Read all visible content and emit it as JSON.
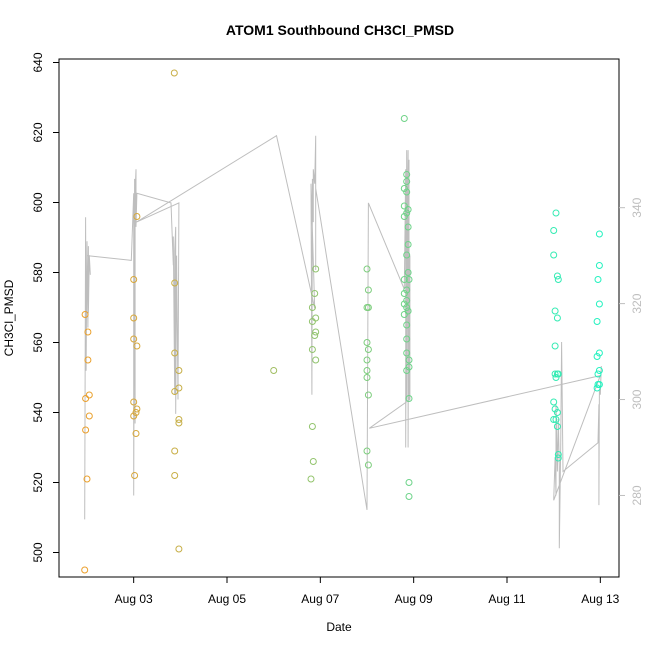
{
  "chart_data": {
    "type": "scatter",
    "title": "ATOM1 Southbound CH3Cl_PMSD",
    "xlabel": "Date",
    "ylabel": "CH3Cl_PMSD",
    "x_unit": "day of August",
    "xlim": [
      1.4,
      13.4
    ],
    "ylim": [
      493,
      641
    ],
    "y2lim": [
      263,
      371
    ],
    "x_ticks": [
      3,
      5,
      7,
      9,
      11,
      13
    ],
    "x_tick_labels": [
      "Aug 03",
      "Aug 05",
      "Aug 07",
      "Aug 09",
      "Aug 11",
      "Aug 13"
    ],
    "y_ticks": [
      500,
      520,
      540,
      560,
      580,
      600,
      620,
      640
    ],
    "y2_ticks": [
      280,
      300,
      320,
      340
    ],
    "grid": false,
    "legend": "none",
    "colors": {
      "points_start": "#f59b24",
      "points_end": "#1bf5c5",
      "secondary_line": "#bebebe",
      "axes": "#000000"
    },
    "points": [
      {
        "x": 1.95,
        "y": 495
      },
      {
        "x": 1.96,
        "y": 568
      },
      {
        "x": 1.97,
        "y": 544
      },
      {
        "x": 1.97,
        "y": 535
      },
      {
        "x": 2.0,
        "y": 521
      },
      {
        "x": 2.02,
        "y": 563
      },
      {
        "x": 2.02,
        "y": 555
      },
      {
        "x": 2.05,
        "y": 545
      },
      {
        "x": 2.05,
        "y": 539
      },
      {
        "x": 3.0,
        "y": 578
      },
      {
        "x": 3.0,
        "y": 567
      },
      {
        "x": 3.0,
        "y": 561
      },
      {
        "x": 3.0,
        "y": 543
      },
      {
        "x": 3.0,
        "y": 539
      },
      {
        "x": 3.02,
        "y": 522
      },
      {
        "x": 3.05,
        "y": 540
      },
      {
        "x": 3.05,
        "y": 534
      },
      {
        "x": 3.07,
        "y": 596
      },
      {
        "x": 3.07,
        "y": 559
      },
      {
        "x": 3.07,
        "y": 541
      },
      {
        "x": 3.87,
        "y": 637
      },
      {
        "x": 3.88,
        "y": 577
      },
      {
        "x": 3.88,
        "y": 557
      },
      {
        "x": 3.88,
        "y": 546
      },
      {
        "x": 3.88,
        "y": 529
      },
      {
        "x": 3.88,
        "y": 522
      },
      {
        "x": 3.97,
        "y": 501
      },
      {
        "x": 3.97,
        "y": 552
      },
      {
        "x": 3.97,
        "y": 547
      },
      {
        "x": 3.97,
        "y": 538
      },
      {
        "x": 3.97,
        "y": 537
      },
      {
        "x": 6.0,
        "y": 552
      },
      {
        "x": 6.8,
        "y": 521
      },
      {
        "x": 6.83,
        "y": 570
      },
      {
        "x": 6.83,
        "y": 566
      },
      {
        "x": 6.83,
        "y": 558
      },
      {
        "x": 6.83,
        "y": 536
      },
      {
        "x": 6.85,
        "y": 526
      },
      {
        "x": 6.88,
        "y": 574
      },
      {
        "x": 6.88,
        "y": 562
      },
      {
        "x": 6.9,
        "y": 581
      },
      {
        "x": 6.9,
        "y": 567
      },
      {
        "x": 6.9,
        "y": 563
      },
      {
        "x": 6.9,
        "y": 555
      },
      {
        "x": 8.0,
        "y": 581
      },
      {
        "x": 8.0,
        "y": 570
      },
      {
        "x": 8.0,
        "y": 560
      },
      {
        "x": 8.0,
        "y": 555
      },
      {
        "x": 8.0,
        "y": 552
      },
      {
        "x": 8.0,
        "y": 550
      },
      {
        "x": 8.0,
        "y": 529
      },
      {
        "x": 8.03,
        "y": 575
      },
      {
        "x": 8.03,
        "y": 570
      },
      {
        "x": 8.03,
        "y": 558
      },
      {
        "x": 8.03,
        "y": 545
      },
      {
        "x": 8.03,
        "y": 525
      },
      {
        "x": 8.8,
        "y": 624
      },
      {
        "x": 8.8,
        "y": 604
      },
      {
        "x": 8.8,
        "y": 599
      },
      {
        "x": 8.8,
        "y": 596
      },
      {
        "x": 8.8,
        "y": 578
      },
      {
        "x": 8.8,
        "y": 574
      },
      {
        "x": 8.8,
        "y": 571
      },
      {
        "x": 8.8,
        "y": 568
      },
      {
        "x": 8.85,
        "y": 608
      },
      {
        "x": 8.85,
        "y": 606
      },
      {
        "x": 8.85,
        "y": 603
      },
      {
        "x": 8.85,
        "y": 597
      },
      {
        "x": 8.85,
        "y": 585
      },
      {
        "x": 8.85,
        "y": 575
      },
      {
        "x": 8.85,
        "y": 572
      },
      {
        "x": 8.85,
        "y": 570
      },
      {
        "x": 8.85,
        "y": 565
      },
      {
        "x": 8.85,
        "y": 561
      },
      {
        "x": 8.85,
        "y": 557
      },
      {
        "x": 8.85,
        "y": 552
      },
      {
        "x": 8.88,
        "y": 598
      },
      {
        "x": 8.88,
        "y": 593
      },
      {
        "x": 8.88,
        "y": 588
      },
      {
        "x": 8.88,
        "y": 580
      },
      {
        "x": 8.88,
        "y": 569
      },
      {
        "x": 8.9,
        "y": 578
      },
      {
        "x": 8.9,
        "y": 555
      },
      {
        "x": 8.9,
        "y": 553
      },
      {
        "x": 8.9,
        "y": 544
      },
      {
        "x": 8.9,
        "y": 520
      },
      {
        "x": 8.9,
        "y": 516
      },
      {
        "x": 12.0,
        "y": 592
      },
      {
        "x": 12.0,
        "y": 585
      },
      {
        "x": 12.0,
        "y": 543
      },
      {
        "x": 12.0,
        "y": 538
      },
      {
        "x": 12.03,
        "y": 569
      },
      {
        "x": 12.03,
        "y": 559
      },
      {
        "x": 12.03,
        "y": 551
      },
      {
        "x": 12.03,
        "y": 541
      },
      {
        "x": 12.05,
        "y": 597
      },
      {
        "x": 12.05,
        "y": 550
      },
      {
        "x": 12.05,
        "y": 538
      },
      {
        "x": 12.08,
        "y": 579
      },
      {
        "x": 12.08,
        "y": 567
      },
      {
        "x": 12.08,
        "y": 551
      },
      {
        "x": 12.08,
        "y": 540
      },
      {
        "x": 12.08,
        "y": 536
      },
      {
        "x": 12.1,
        "y": 578
      },
      {
        "x": 12.1,
        "y": 551
      },
      {
        "x": 12.1,
        "y": 528
      },
      {
        "x": 12.1,
        "y": 527
      },
      {
        "x": 12.93,
        "y": 566
      },
      {
        "x": 12.93,
        "y": 556
      },
      {
        "x": 12.93,
        "y": 547
      },
      {
        "x": 12.95,
        "y": 578
      },
      {
        "x": 12.95,
        "y": 551
      },
      {
        "x": 12.95,
        "y": 548
      },
      {
        "x": 12.98,
        "y": 591
      },
      {
        "x": 12.98,
        "y": 582
      },
      {
        "x": 12.98,
        "y": 571
      },
      {
        "x": 12.98,
        "y": 557
      },
      {
        "x": 12.98,
        "y": 552
      },
      {
        "x": 12.98,
        "y": 548
      }
    ],
    "secondary_series": {
      "axis": "right",
      "points": [
        {
          "x": 1.95,
          "y": 275
        },
        {
          "x": 1.97,
          "y": 338
        },
        {
          "x": 1.98,
          "y": 306
        },
        {
          "x": 2.0,
          "y": 333
        },
        {
          "x": 2.02,
          "y": 315
        },
        {
          "x": 2.03,
          "y": 332
        },
        {
          "x": 2.03,
          "y": 318
        },
        {
          "x": 2.05,
          "y": 330
        },
        {
          "x": 2.07,
          "y": 326
        },
        {
          "x": 2.05,
          "y": 330
        },
        {
          "x": 2.0,
          "y": 330
        },
        {
          "x": 2.95,
          "y": 329
        },
        {
          "x": 3.0,
          "y": 343
        },
        {
          "x": 3.0,
          "y": 280
        },
        {
          "x": 3.02,
          "y": 346
        },
        {
          "x": 3.03,
          "y": 295
        },
        {
          "x": 3.03,
          "y": 343
        },
        {
          "x": 3.05,
          "y": 348
        },
        {
          "x": 3.05,
          "y": 336
        },
        {
          "x": 3.07,
          "y": 343
        },
        {
          "x": 3.8,
          "y": 341
        },
        {
          "x": 3.85,
          "y": 328
        },
        {
          "x": 3.85,
          "y": 334
        },
        {
          "x": 3.88,
          "y": 301
        },
        {
          "x": 3.88,
          "y": 331
        },
        {
          "x": 3.9,
          "y": 336
        },
        {
          "x": 3.9,
          "y": 297
        },
        {
          "x": 3.92,
          "y": 330
        },
        {
          "x": 3.95,
          "y": 300
        },
        {
          "x": 3.97,
          "y": 341
        },
        {
          "x": 3.06,
          "y": 337
        },
        {
          "x": 6.06,
          "y": 355
        },
        {
          "x": 6.88,
          "y": 319
        },
        {
          "x": 6.8,
          "y": 345
        },
        {
          "x": 6.82,
          "y": 301
        },
        {
          "x": 6.83,
          "y": 346
        },
        {
          "x": 6.85,
          "y": 337
        },
        {
          "x": 6.85,
          "y": 348
        },
        {
          "x": 6.88,
          "y": 345
        },
        {
          "x": 6.9,
          "y": 355
        },
        {
          "x": 6.9,
          "y": 327
        },
        {
          "x": 6.9,
          "y": 344
        },
        {
          "x": 8.0,
          "y": 277
        },
        {
          "x": 8.03,
          "y": 341
        },
        {
          "x": 8.8,
          "y": 323
        },
        {
          "x": 8.83,
          "y": 348
        },
        {
          "x": 8.83,
          "y": 290
        },
        {
          "x": 8.85,
          "y": 352
        },
        {
          "x": 8.85,
          "y": 300
        },
        {
          "x": 8.87,
          "y": 345
        },
        {
          "x": 8.88,
          "y": 352
        },
        {
          "x": 8.88,
          "y": 290
        },
        {
          "x": 8.9,
          "y": 350
        },
        {
          "x": 8.9,
          "y": 300
        },
        {
          "x": 8.92,
          "y": 330
        },
        {
          "x": 8.92,
          "y": 300
        },
        {
          "x": 8.05,
          "y": 294
        },
        {
          "x": 13.0,
          "y": 305
        },
        {
          "x": 12.0,
          "y": 279
        },
        {
          "x": 12.03,
          "y": 288
        },
        {
          "x": 12.05,
          "y": 280
        },
        {
          "x": 12.05,
          "y": 299
        },
        {
          "x": 12.08,
          "y": 285
        },
        {
          "x": 12.1,
          "y": 296
        },
        {
          "x": 12.12,
          "y": 286
        },
        {
          "x": 12.12,
          "y": 269
        },
        {
          "x": 12.15,
          "y": 290
        },
        {
          "x": 12.17,
          "y": 312
        },
        {
          "x": 12.2,
          "y": 285
        },
        {
          "x": 12.95,
          "y": 291
        },
        {
          "x": 12.97,
          "y": 299
        },
        {
          "x": 12.97,
          "y": 278
        },
        {
          "x": 12.98,
          "y": 302
        },
        {
          "x": 13.0,
          "y": 301
        },
        {
          "x": 13.02,
          "y": 307
        }
      ]
    }
  }
}
